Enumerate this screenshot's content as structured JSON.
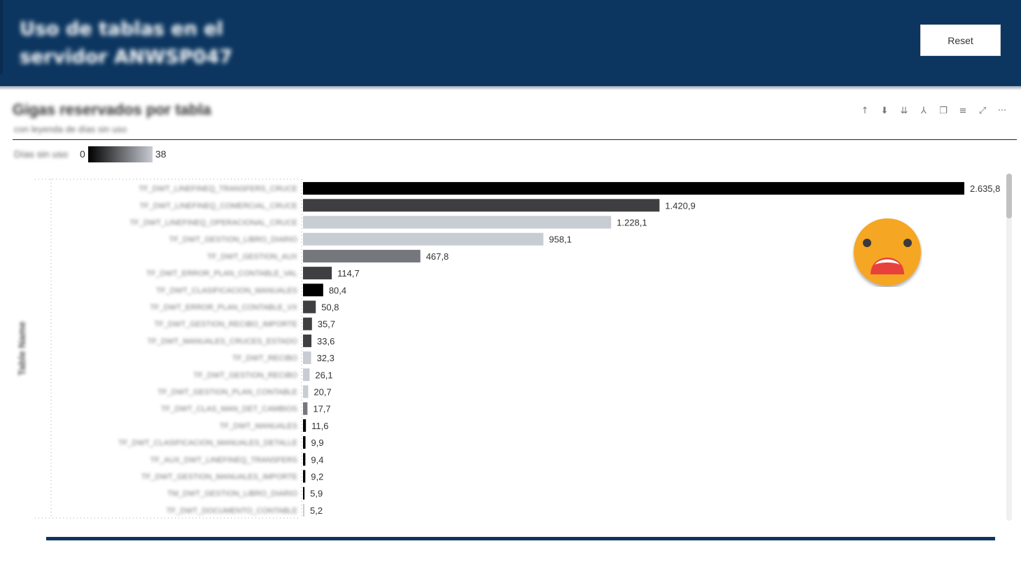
{
  "header": {
    "title": "Uso de tablas en el servidor ANWSP047",
    "reset_label": "Reset"
  },
  "visual": {
    "title": "Gigas reservados por tabla",
    "subtitle": "con leyenda de días sin uso"
  },
  "toolbar": {
    "icons": [
      "arrow-up-icon",
      "drill-down-icon",
      "expand-all-icon",
      "hierarchy-icon",
      "copy-icon",
      "filter-icon",
      "focus-mode-icon",
      "more-options-icon"
    ],
    "glyphs": [
      "↑",
      "⬇",
      "⇊",
      "⅄",
      "❐",
      "≡",
      "⤢",
      "···"
    ]
  },
  "legend": {
    "label": "Días sin uso",
    "min": "0",
    "max": "38"
  },
  "colors": {
    "header_bg": "#0c3660",
    "black": "#000000",
    "dark": "#3f3f42",
    "mid": "#75777d",
    "light": "#c8ccd3",
    "emoji": "#f5a623",
    "mouth": "#e8413c"
  },
  "chart_data": {
    "type": "bar",
    "orientation": "horizontal",
    "ylabel": "Table Name",
    "categories": [
      "TF_DWT_LINEFINEQ_TRANSFERS_CRUCE",
      "TF_DWT_LINEFINEQ_COMERCIAL_CRUCE",
      "TF_DWT_LINEFINEQ_OPERACIONAL_CRUCE",
      "TF_DWT_GESTION_LIBRO_DIARIO",
      "TF_DWT_GESTION_AUX",
      "TF_DWT_ERROR_PLAN_CONTABLE_VAL",
      "TF_DWT_CLASIFICACION_MANUALES",
      "TF_DWT_ERROR_PLAN_CONTABLE_VX",
      "TF_DWT_GESTION_RECIBO_IMPORTE",
      "TF_DWT_MANUALES_CRUCES_ESTADO",
      "TF_DWT_RECIBO",
      "TF_DWT_GESTION_RECIBO",
      "TF_DWT_GESTION_PLAN_CONTABLE",
      "TF_DWT_CLAS_MAN_DET_CAMBIOS",
      "TF_DWT_MANUALES",
      "TF_DWT_CLASIFICACION_MANUALES_DETALLE",
      "TF_AUX_DWT_LINEFINEQ_TRANSFERS",
      "TF_DWT_GESTION_MANUALES_IMPORTE",
      "TM_DWT_GESTION_LIBRO_DIARIO",
      "TF_DWT_DOCUMENTO_CONTABLE"
    ],
    "values": [
      2635.8,
      1420.9,
      1228.1,
      958.1,
      467.8,
      114.7,
      80.4,
      50.8,
      35.7,
      33.6,
      32.3,
      26.1,
      20.7,
      17.7,
      11.6,
      9.9,
      9.4,
      9.2,
      5.9,
      5.2
    ],
    "value_labels": [
      "2.635,8",
      "1.420,9",
      "1.228,1",
      "958,1",
      "467,8",
      "114,7",
      "80,4",
      "50,8",
      "35,7",
      "33,6",
      "32,3",
      "26,1",
      "20,7",
      "17,7",
      "11,6",
      "9,9",
      "9,4",
      "9,2",
      "5,9",
      "5,2"
    ],
    "color_levels": [
      "black",
      "dark",
      "light",
      "light",
      "mid",
      "dark",
      "black",
      "dark",
      "dark",
      "dark",
      "light",
      "light",
      "light",
      "mid",
      "black",
      "black",
      "black",
      "black",
      "black",
      "light"
    ],
    "color_legend": {
      "label": "Días sin uso",
      "min": 0,
      "max": 38
    },
    "xlim": [
      0,
      2635.8
    ],
    "grid": false
  }
}
